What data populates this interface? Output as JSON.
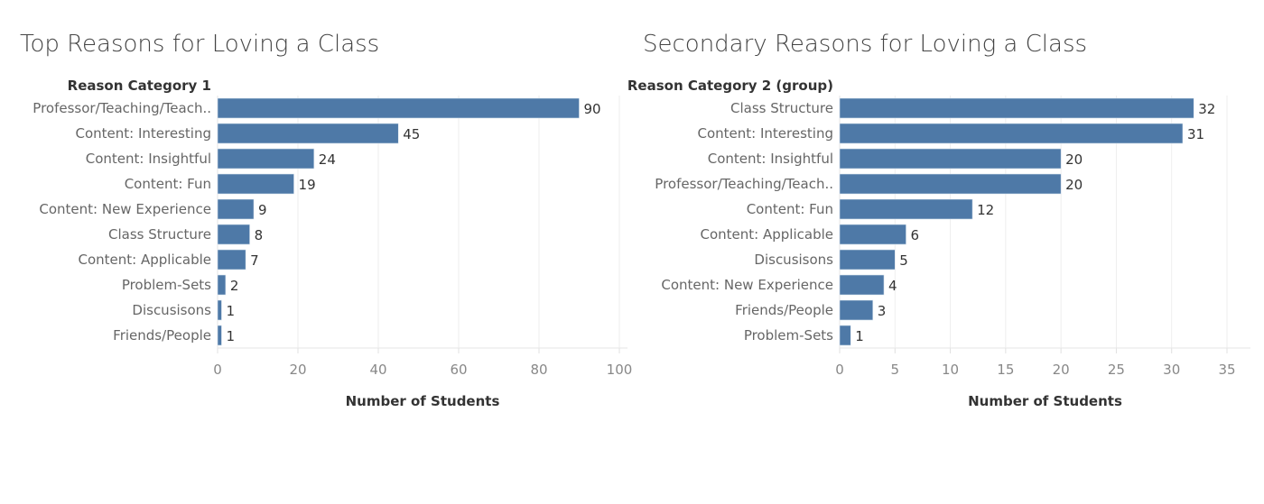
{
  "chart_data": [
    {
      "type": "bar",
      "orientation": "horizontal",
      "title": "Top Reasons for Loving a Class",
      "category_header": "Reason Category 1",
      "xlabel": "Number of Students",
      "categories": [
        "Professor/Teaching/Teach..",
        "Content: Interesting",
        "Content: Insightful",
        "Content: Fun",
        "Content: New Experience",
        "Class Structure",
        "Content: Applicable",
        "Problem-Sets",
        "Discusisons",
        "Friends/People"
      ],
      "values": [
        90,
        45,
        24,
        19,
        9,
        8,
        7,
        2,
        1,
        1
      ],
      "xlim": [
        0,
        100
      ],
      "ticks": [
        0,
        20,
        40,
        60,
        80,
        100
      ],
      "grid": true,
      "bar_color": "#4e79a7"
    },
    {
      "type": "bar",
      "orientation": "horizontal",
      "title": "Secondary Reasons for Loving a Class",
      "category_header": "Reason Category 2 (group)",
      "xlabel": "Number of Students",
      "categories": [
        "Class Structure",
        "Content: Interesting",
        "Content: Insightful",
        "Professor/Teaching/Teach..",
        "Content: Fun",
        "Content: Applicable",
        "Discusisons",
        "Content: New Experience",
        "Friends/People",
        "Problem-Sets"
      ],
      "values": [
        32,
        31,
        20,
        20,
        12,
        6,
        5,
        4,
        3,
        1
      ],
      "xlim": [
        0,
        35
      ],
      "ticks": [
        0,
        5,
        10,
        15,
        20,
        25,
        30,
        35
      ],
      "grid": true,
      "bar_color": "#4e79a7"
    }
  ]
}
